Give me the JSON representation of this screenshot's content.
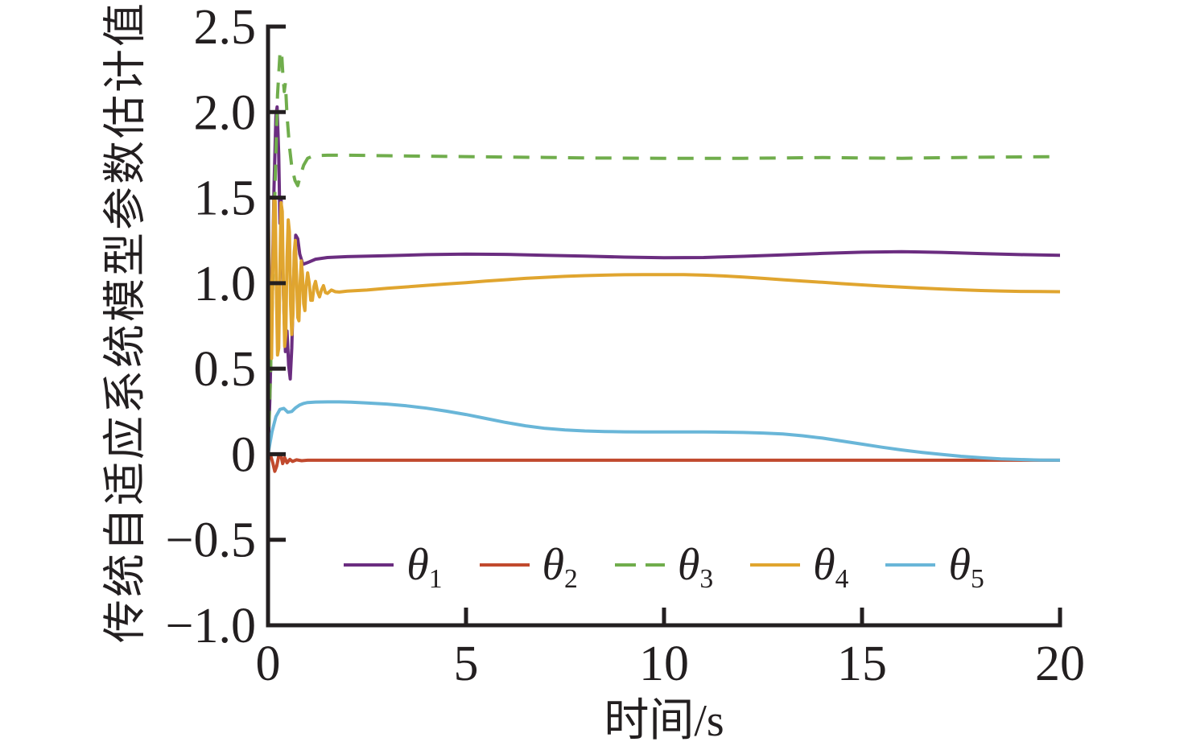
{
  "colors": {
    "background": "#ffffff",
    "axis": "#231f20",
    "text": "#231f20"
  },
  "chart_data": {
    "type": "line",
    "title": "",
    "xlabel": "时间/s",
    "ylabel": "传统自适应系统模型参数估计值",
    "xlim": [
      0,
      20
    ],
    "ylim": [
      -1.0,
      2.5
    ],
    "x_ticks": [
      0,
      5,
      10,
      15,
      20
    ],
    "x_tick_labels": [
      "0",
      "5",
      "10",
      "15",
      "20"
    ],
    "y_ticks": [
      2.5,
      2.0,
      1.5,
      1.0,
      0.5,
      0,
      -0.5,
      -1.0
    ],
    "y_tick_labels": [
      "2.5",
      "2.0",
      "1.5",
      "1.0",
      "0.5",
      "0",
      "−0.5",
      "−1.0"
    ],
    "grid": false,
    "legend_position": "lower center, inside axes, single row, no frame",
    "series": [
      {
        "id": "theta1",
        "label_base": "θ",
        "label_sub": "1",
        "color": "#6b2d80",
        "dash": null,
        "points": [
          [
            0,
            0
          ],
          [
            0.05,
            0.35
          ],
          [
            0.1,
            0.9
          ],
          [
            0.15,
            1.55
          ],
          [
            0.2,
            1.98
          ],
          [
            0.23,
            2.03
          ],
          [
            0.27,
            1.75
          ],
          [
            0.3,
            1.35
          ],
          [
            0.33,
            1.5
          ],
          [
            0.36,
            1.2
          ],
          [
            0.4,
            0.85
          ],
          [
            0.44,
            0.6
          ],
          [
            0.48,
            0.72
          ],
          [
            0.52,
            0.52
          ],
          [
            0.56,
            0.44
          ],
          [
            0.6,
            0.62
          ],
          [
            0.65,
            1.05
          ],
          [
            0.7,
            1.28
          ],
          [
            0.75,
            1.26
          ],
          [
            0.8,
            1.17
          ],
          [
            0.88,
            1.11
          ],
          [
            1.0,
            1.12
          ],
          [
            1.2,
            1.14
          ],
          [
            1.5,
            1.15
          ],
          [
            2,
            1.155
          ],
          [
            3,
            1.16
          ],
          [
            4,
            1.167
          ],
          [
            5,
            1.17
          ],
          [
            6,
            1.168
          ],
          [
            7,
            1.163
          ],
          [
            8,
            1.158
          ],
          [
            9,
            1.152
          ],
          [
            10,
            1.149
          ],
          [
            11,
            1.15
          ],
          [
            12,
            1.157
          ],
          [
            13,
            1.165
          ],
          [
            14,
            1.174
          ],
          [
            15,
            1.181
          ],
          [
            16,
            1.184
          ],
          [
            17,
            1.18
          ],
          [
            18,
            1.173
          ],
          [
            19,
            1.167
          ],
          [
            20,
            1.163
          ]
        ]
      },
      {
        "id": "theta2",
        "label_base": "θ",
        "label_sub": "2",
        "color": "#c14a2e",
        "dash": null,
        "points": [
          [
            0,
            0
          ],
          [
            0.07,
            -0.01
          ],
          [
            0.12,
            -0.05
          ],
          [
            0.17,
            -0.1
          ],
          [
            0.22,
            -0.07
          ],
          [
            0.27,
            -0.01
          ],
          [
            0.32,
            0.0
          ],
          [
            0.37,
            -0.055
          ],
          [
            0.42,
            -0.02
          ],
          [
            0.48,
            -0.05
          ],
          [
            0.55,
            -0.03
          ],
          [
            0.62,
            -0.042
          ],
          [
            0.72,
            -0.033
          ],
          [
            0.85,
            -0.038
          ],
          [
            1,
            -0.035
          ],
          [
            2,
            -0.035
          ],
          [
            4,
            -0.035
          ],
          [
            6,
            -0.035
          ],
          [
            8,
            -0.035
          ],
          [
            10,
            -0.035
          ],
          [
            12,
            -0.035
          ],
          [
            14,
            -0.035
          ],
          [
            16,
            -0.035
          ],
          [
            18,
            -0.035
          ],
          [
            20,
            -0.035
          ]
        ]
      },
      {
        "id": "theta3",
        "label_base": "θ",
        "label_sub": "3",
        "color": "#70ad4c",
        "dash": "20 14",
        "points": [
          [
            0,
            0
          ],
          [
            0.06,
            0.45
          ],
          [
            0.12,
            1.0
          ],
          [
            0.18,
            1.6
          ],
          [
            0.24,
            2.1
          ],
          [
            0.3,
            2.34
          ],
          [
            0.34,
            2.36
          ],
          [
            0.38,
            2.2
          ],
          [
            0.41,
            2.12
          ],
          [
            0.44,
            2.17
          ],
          [
            0.48,
            1.98
          ],
          [
            0.54,
            1.8
          ],
          [
            0.6,
            1.68
          ],
          [
            0.68,
            1.6
          ],
          [
            0.75,
            1.57
          ],
          [
            0.82,
            1.63
          ],
          [
            0.9,
            1.69
          ],
          [
            1.0,
            1.73
          ],
          [
            1.15,
            1.745
          ],
          [
            1.5,
            1.748
          ],
          [
            2,
            1.748
          ],
          [
            3,
            1.745
          ],
          [
            4,
            1.742
          ],
          [
            5,
            1.74
          ],
          [
            6,
            1.737
          ],
          [
            7,
            1.735
          ],
          [
            8,
            1.732
          ],
          [
            9,
            1.731
          ],
          [
            10,
            1.73
          ],
          [
            11,
            1.73
          ],
          [
            12,
            1.73
          ],
          [
            13,
            1.732
          ],
          [
            14,
            1.734
          ],
          [
            15,
            1.732
          ],
          [
            16,
            1.73
          ],
          [
            17,
            1.733
          ],
          [
            18,
            1.736
          ],
          [
            19,
            1.738
          ],
          [
            20,
            1.74
          ]
        ]
      },
      {
        "id": "theta4",
        "label_base": "θ",
        "label_sub": "4",
        "color": "#e0a52f",
        "dash": null,
        "points": [
          [
            0,
            1.5
          ],
          [
            0.03,
            1.1
          ],
          [
            0.06,
            0.62
          ],
          [
            0.09,
            0.56
          ],
          [
            0.12,
            1.05
          ],
          [
            0.15,
            1.5
          ],
          [
            0.18,
            1.48
          ],
          [
            0.21,
            1.0
          ],
          [
            0.24,
            0.58
          ],
          [
            0.27,
            0.62
          ],
          [
            0.3,
            1.1
          ],
          [
            0.33,
            1.47
          ],
          [
            0.36,
            1.42
          ],
          [
            0.39,
            0.95
          ],
          [
            0.42,
            0.63
          ],
          [
            0.45,
            0.7
          ],
          [
            0.48,
            1.15
          ],
          [
            0.51,
            1.37
          ],
          [
            0.54,
            1.3
          ],
          [
            0.57,
            0.88
          ],
          [
            0.6,
            0.7
          ],
          [
            0.63,
            0.82
          ],
          [
            0.66,
            1.18
          ],
          [
            0.69,
            1.25
          ],
          [
            0.72,
            1.05
          ],
          [
            0.75,
            0.8
          ],
          [
            0.78,
            0.78
          ],
          [
            0.81,
            1.0
          ],
          [
            0.84,
            1.13
          ],
          [
            0.87,
            1.05
          ],
          [
            0.9,
            0.88
          ],
          [
            0.93,
            0.84
          ],
          [
            0.96,
            0.98
          ],
          [
            1.0,
            1.06
          ],
          [
            1.04,
            1.0
          ],
          [
            1.08,
            0.9
          ],
          [
            1.12,
            0.9
          ],
          [
            1.16,
            0.98
          ],
          [
            1.2,
            1.01
          ],
          [
            1.25,
            0.95
          ],
          [
            1.3,
            0.92
          ],
          [
            1.35,
            0.96
          ],
          [
            1.4,
            0.985
          ],
          [
            1.45,
            0.945
          ],
          [
            1.5,
            0.94
          ],
          [
            1.6,
            0.96
          ],
          [
            1.7,
            0.95
          ],
          [
            1.8,
            0.948
          ],
          [
            2,
            0.953
          ],
          [
            2.5,
            0.96
          ],
          [
            3,
            0.97
          ],
          [
            3.5,
            0.978
          ],
          [
            4,
            0.987
          ],
          [
            4.5,
            0.995
          ],
          [
            5,
            1.003
          ],
          [
            5.5,
            1.012
          ],
          [
            6,
            1.02
          ],
          [
            6.5,
            1.028
          ],
          [
            7,
            1.034
          ],
          [
            7.5,
            1.04
          ],
          [
            8,
            1.044
          ],
          [
            8.5,
            1.047
          ],
          [
            9,
            1.049
          ],
          [
            9.5,
            1.05
          ],
          [
            10,
            1.05
          ],
          [
            10.5,
            1.05
          ],
          [
            11,
            1.047
          ],
          [
            11.5,
            1.042
          ],
          [
            12,
            1.036
          ],
          [
            12.5,
            1.028
          ],
          [
            13,
            1.02
          ],
          [
            13.5,
            1.012
          ],
          [
            14,
            1.005
          ],
          [
            14.5,
            0.997
          ],
          [
            15,
            0.99
          ],
          [
            15.5,
            0.983
          ],
          [
            16,
            0.977
          ],
          [
            16.5,
            0.971
          ],
          [
            17,
            0.966
          ],
          [
            17.5,
            0.961
          ],
          [
            18,
            0.957
          ],
          [
            18.5,
            0.954
          ],
          [
            19,
            0.952
          ],
          [
            19.5,
            0.951
          ],
          [
            20,
            0.95
          ]
        ]
      },
      {
        "id": "theta5",
        "label_base": "θ",
        "label_sub": "5",
        "color": "#69b6d8",
        "dash": null,
        "points": [
          [
            0,
            0
          ],
          [
            0.1,
            0.13
          ],
          [
            0.2,
            0.22
          ],
          [
            0.3,
            0.262
          ],
          [
            0.4,
            0.268
          ],
          [
            0.5,
            0.245
          ],
          [
            0.6,
            0.25
          ],
          [
            0.7,
            0.272
          ],
          [
            0.8,
            0.288
          ],
          [
            0.9,
            0.297
          ],
          [
            1.0,
            0.302
          ],
          [
            1.2,
            0.305
          ],
          [
            1.5,
            0.306
          ],
          [
            1.8,
            0.306
          ],
          [
            2.1,
            0.304
          ],
          [
            2.5,
            0.3
          ],
          [
            3,
            0.293
          ],
          [
            3.5,
            0.283
          ],
          [
            4,
            0.269
          ],
          [
            4.5,
            0.252
          ],
          [
            5,
            0.232
          ],
          [
            5.5,
            0.209
          ],
          [
            6,
            0.186
          ],
          [
            6.5,
            0.166
          ],
          [
            7,
            0.151
          ],
          [
            7.5,
            0.142
          ],
          [
            8,
            0.136
          ],
          [
            8.5,
            0.133
          ],
          [
            9,
            0.131
          ],
          [
            9.5,
            0.13
          ],
          [
            10,
            0.13
          ],
          [
            10.5,
            0.13
          ],
          [
            11,
            0.13
          ],
          [
            11.5,
            0.129
          ],
          [
            12,
            0.127
          ],
          [
            12.5,
            0.124
          ],
          [
            13,
            0.118
          ],
          [
            13.5,
            0.108
          ],
          [
            14,
            0.094
          ],
          [
            14.5,
            0.077
          ],
          [
            15,
            0.059
          ],
          [
            15.5,
            0.041
          ],
          [
            16,
            0.025
          ],
          [
            16.5,
            0.011
          ],
          [
            17,
            -0.001
          ],
          [
            17.5,
            -0.012
          ],
          [
            18,
            -0.02
          ],
          [
            18.5,
            -0.027
          ],
          [
            19,
            -0.031
          ],
          [
            19.5,
            -0.034
          ],
          [
            20,
            -0.035
          ]
        ]
      }
    ]
  }
}
